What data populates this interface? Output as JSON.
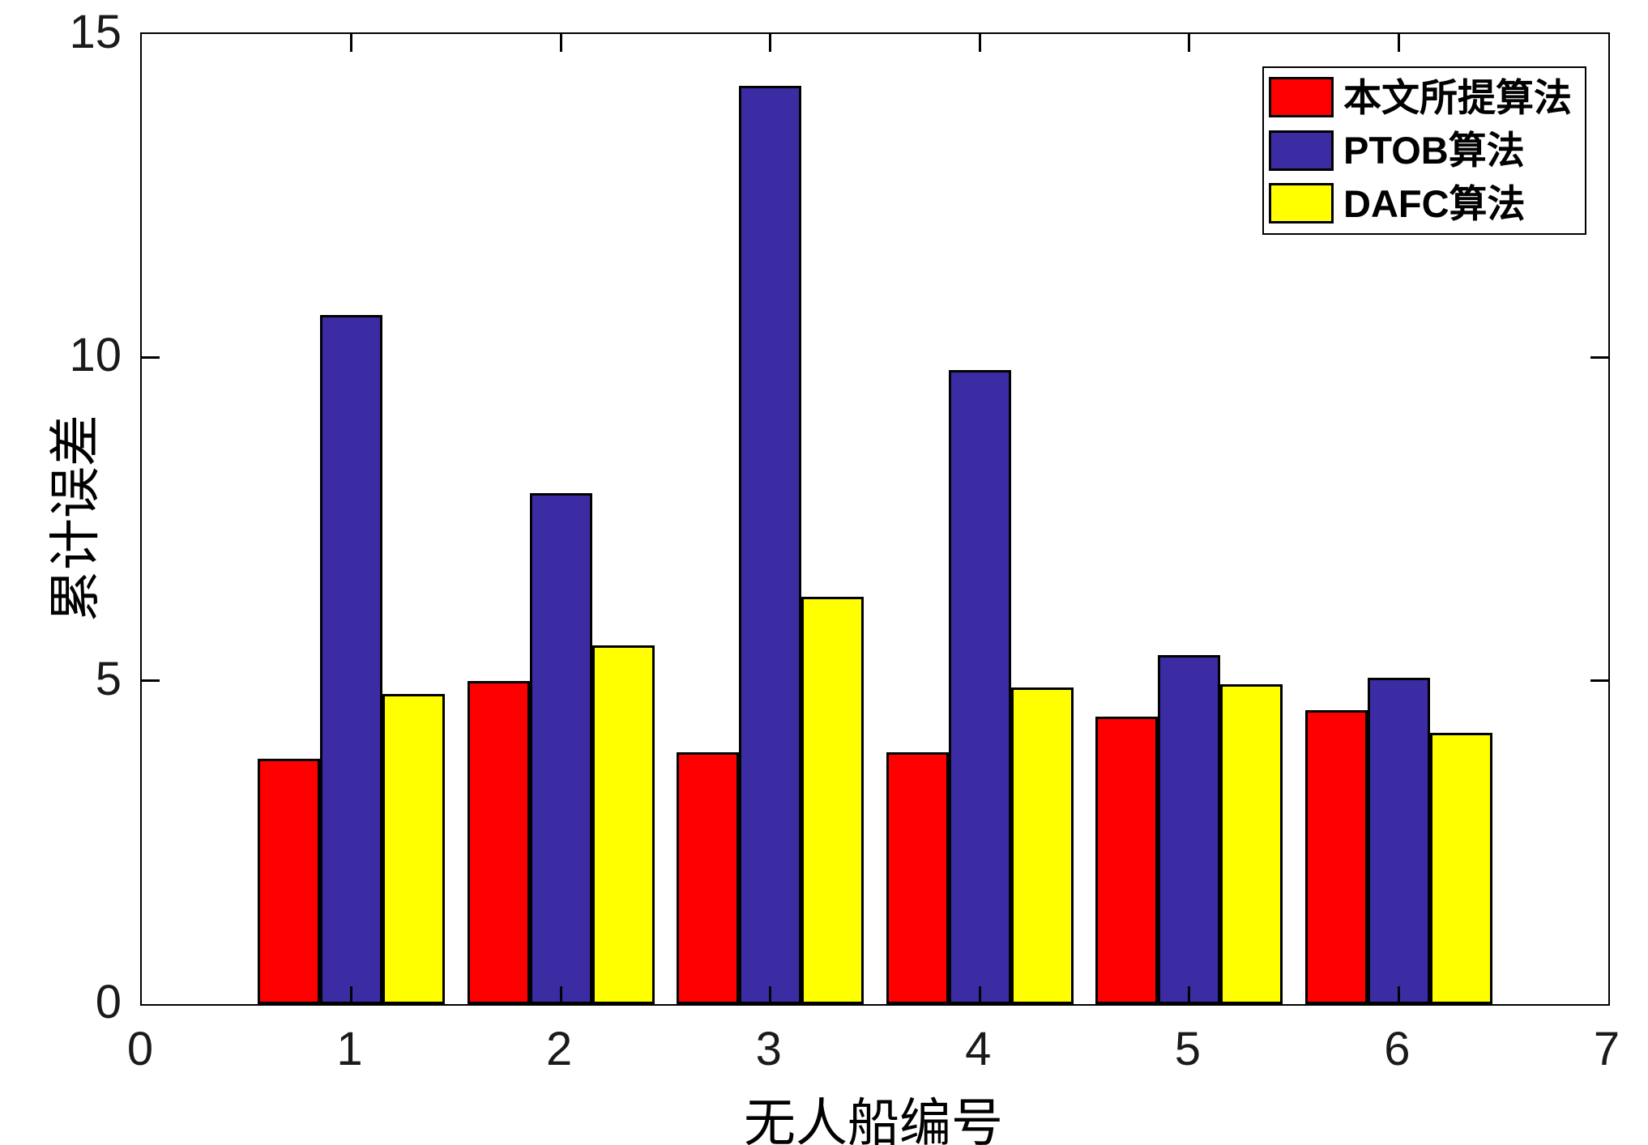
{
  "figure": {
    "background": "#ffffff",
    "axis_color": "#000000",
    "tick_label_color": "#1a1a1a"
  },
  "chart_data": {
    "type": "bar",
    "title": "",
    "xlabel": "无人船编号",
    "ylabel": "累计误差",
    "xlim": [
      0,
      7
    ],
    "ylim": [
      0,
      15
    ],
    "xticks": [
      0,
      1,
      2,
      3,
      4,
      5,
      6,
      7
    ],
    "yticks": [
      0,
      5,
      10,
      15
    ],
    "grid": false,
    "legend_position": "top-right",
    "bar_edge_color": "#000000",
    "categories": [
      1,
      2,
      3,
      4,
      5,
      6
    ],
    "series": [
      {
        "name": "本文所提算法",
        "key": "proposed",
        "color": "#ff0000",
        "values": [
          3.8,
          5.0,
          3.9,
          3.9,
          4.45,
          4.55
        ]
      },
      {
        "name": "PTOB算法",
        "key": "ptob",
        "color": "#3b2ca4",
        "values": [
          10.65,
          7.9,
          14.2,
          9.8,
          5.4,
          5.05
        ]
      },
      {
        "name": "DAFC算法",
        "key": "dafc",
        "color": "#ffff00",
        "values": [
          4.8,
          5.55,
          6.3,
          4.9,
          4.95,
          4.2
        ]
      }
    ]
  }
}
